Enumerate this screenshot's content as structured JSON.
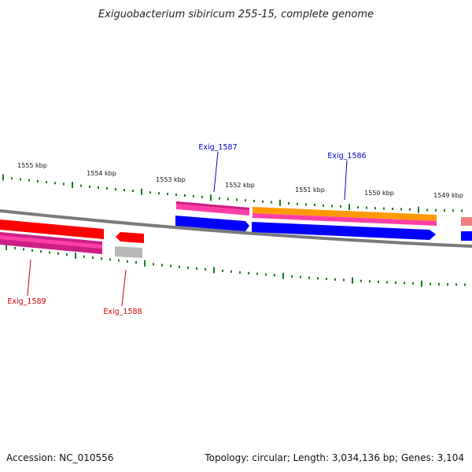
{
  "title": "Exiguobacterium sibiricum 255-15, complete genome",
  "footer": {
    "accession": "Accession: NC_010556",
    "topology": "Topology: circular; Length: 3,034,136 bp; Genes: 3,104"
  },
  "colors": {
    "backbone": "#7a7a7a",
    "tick": "#1a7a1a",
    "forward_label": "#0000cc",
    "reverse_label": "#cc0000",
    "red": "#ff0000",
    "pink": "#ff3fa6",
    "magenta": "#cc1f86",
    "orange": "#ff9900",
    "blue": "#0000ff",
    "grey": "#b8b8b8"
  },
  "scale_ticks": [
    {
      "label": "1555 kbp"
    },
    {
      "label": "1554 kbp"
    },
    {
      "label": "1553 kbp"
    },
    {
      "label": "1552 kbp"
    },
    {
      "label": "1551 kbp"
    },
    {
      "label": "1550 kbp"
    },
    {
      "label": "1549 kbp"
    }
  ],
  "gene_labels": [
    {
      "name": "Exig_1587",
      "strand": "forward"
    },
    {
      "name": "Exig_1586",
      "strand": "forward"
    },
    {
      "name": "Exig_1589",
      "strand": "reverse"
    },
    {
      "name": "Exig_1588",
      "strand": "reverse"
    }
  ]
}
